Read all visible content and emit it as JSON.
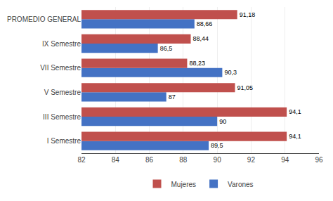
{
  "chart_data": {
    "type": "bar",
    "orientation": "horizontal",
    "categories": [
      "I Semestre",
      "III Semestre",
      "V Semestre",
      "VII Semestre",
      "IX Semestre",
      "PROMEDIO GENERAL"
    ],
    "series": [
      {
        "name": "Mujeres",
        "color": "#c0504d",
        "values": [
          94.1,
          94.1,
          91.05,
          88.23,
          88.44,
          91.18
        ],
        "value_labels": [
          "94,1",
          "94,1",
          "91,05",
          "88,23",
          "88,44",
          "91,18"
        ]
      },
      {
        "name": "Varones",
        "color": "#4472c4",
        "values": [
          89.5,
          90,
          87,
          90.3,
          86.5,
          88.66
        ],
        "value_labels": [
          "89,5",
          "90",
          "87",
          "90,3",
          "86,5",
          "88,66"
        ]
      }
    ],
    "xlim": [
      82,
      96
    ],
    "xticks": [
      82,
      84,
      86,
      88,
      90,
      92,
      94,
      96
    ],
    "grid": true,
    "data_labels": true,
    "legend": "bottom"
  }
}
